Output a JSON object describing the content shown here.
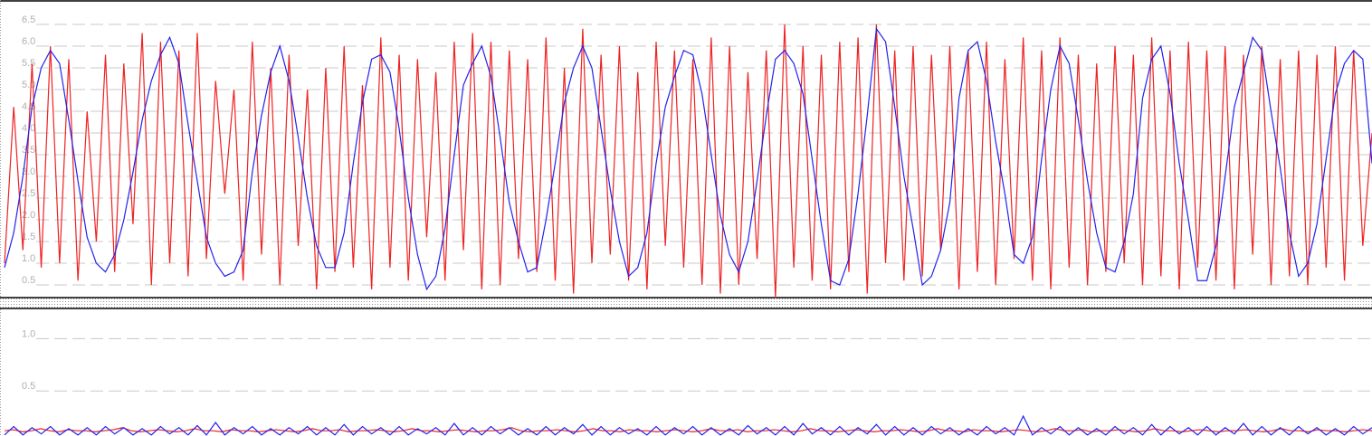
{
  "chart_data": [
    {
      "type": "line",
      "ylim": [
        0.23,
        7.02
      ],
      "yticks": [
        0.5,
        {
          "value": 1,
          "label": "1.0"
        },
        1.5,
        {
          "value": 2,
          "label": "2.0"
        },
        2.5,
        {
          "value": 3,
          "label": "3.0"
        },
        3.5,
        {
          "value": 4,
          "label": "4.0"
        },
        4.5,
        {
          "value": 5,
          "label": "5.0"
        },
        5.5,
        {
          "value": 6,
          "label": "6.0"
        },
        6.5
      ],
      "grid": true,
      "series": [
        {
          "color": "#ee2222",
          "values": [
            1.0,
            4.6,
            1.3,
            5.6,
            0.9,
            6.0,
            1.0,
            5.7,
            0.6,
            4.5,
            1.5,
            5.8,
            0.8,
            5.6,
            1.9,
            6.3,
            0.5,
            6.1,
            1.0,
            5.9,
            0.7,
            6.3,
            1.1,
            5.2,
            2.6,
            5.0,
            0.6,
            6.1,
            1.2,
            5.5,
            0.5,
            5.8,
            1.4,
            5.0,
            0.4,
            5.5,
            0.8,
            6.0,
            0.9,
            5.1,
            0.4,
            6.2,
            0.9,
            5.8,
            0.6,
            5.7,
            1.6,
            5.4,
            0.6,
            6.1,
            1.3,
            6.3,
            0.4,
            6.1,
            0.5,
            5.9,
            1.1,
            5.7,
            0.8,
            6.2,
            0.6,
            5.5,
            0.3,
            6.4,
            1.0,
            5.8,
            1.2,
            6.0,
            0.6,
            5.4,
            0.4,
            6.1,
            1.4,
            5.9,
            0.9,
            5.7,
            0.5,
            6.2,
            0.3,
            6.0,
            0.5,
            5.4,
            1.1,
            5.9,
            0.2,
            6.5,
            0.9,
            6.0,
            0.6,
            5.8,
            0.4,
            6.1,
            0.8,
            6.2,
            0.3,
            6.5,
            1.0,
            5.9,
            0.6,
            6.0,
            0.7,
            5.8,
            1.3,
            6.0,
            0.4,
            5.9,
            0.8,
            6.1,
            0.5,
            5.7,
            1.1,
            6.2,
            0.6,
            5.9,
            0.4,
            6.2,
            0.9,
            5.8,
            0.5,
            5.6,
            0.8,
            6.0,
            1.0,
            5.8,
            0.5,
            6.2,
            0.7,
            5.9,
            0.4,
            6.1,
            0.9,
            5.9,
            0.6,
            6.0,
            0.4,
            5.8,
            1.2,
            6.0,
            0.5,
            5.7,
            0.7,
            5.9,
            0.5,
            5.8,
            0.9,
            6.0,
            0.6,
            5.9,
            1.4,
            4.0
          ]
        },
        {
          "color": "#2222ee",
          "values": [
            0.9,
            1.7,
            3.0,
            4.6,
            5.5,
            5.9,
            5.6,
            4.3,
            2.9,
            1.6,
            1.0,
            0.8,
            1.2,
            2.0,
            3.1,
            4.3,
            5.2,
            5.8,
            6.2,
            5.6,
            4.2,
            2.9,
            1.6,
            1.0,
            0.7,
            0.8,
            1.3,
            3.1,
            4.4,
            5.4,
            6.0,
            5.2,
            3.9,
            2.5,
            1.4,
            0.9,
            0.9,
            1.7,
            3.3,
            4.7,
            5.7,
            5.8,
            5.4,
            4.1,
            2.5,
            1.2,
            0.4,
            0.7,
            1.8,
            3.5,
            5.1,
            5.6,
            6.0,
            5.3,
            3.9,
            2.4,
            1.5,
            0.8,
            0.9,
            2.0,
            3.3,
            4.7,
            5.5,
            6.0,
            5.5,
            4.1,
            2.7,
            1.5,
            0.7,
            0.9,
            1.7,
            3.3,
            4.6,
            5.3,
            5.9,
            5.8,
            4.9,
            3.5,
            2.1,
            1.2,
            0.8,
            1.5,
            2.9,
            4.4,
            5.7,
            5.9,
            5.6,
            4.9,
            3.4,
            1.9,
            0.6,
            0.5,
            1.1,
            2.6,
            4.4,
            6.4,
            6.1,
            4.6,
            3.0,
            1.8,
            0.5,
            0.7,
            1.3,
            2.4,
            4.8,
            5.9,
            6.1,
            5.2,
            3.8,
            2.6,
            1.2,
            1.0,
            1.6,
            3.4,
            5.0,
            6.0,
            5.6,
            4.3,
            2.9,
            1.7,
            0.9,
            0.8,
            1.5,
            2.6,
            4.8,
            5.7,
            6.0,
            4.9,
            3.3,
            2.0,
            0.6,
            0.6,
            1.4,
            3.0,
            4.6,
            5.4,
            6.2,
            5.9,
            4.5,
            3.2,
            1.7,
            0.7,
            1.0,
            1.9,
            3.4,
            4.9,
            5.6,
            5.9,
            5.7,
            3.3
          ]
        }
      ]
    },
    {
      "type": "line",
      "ylim": [
        0.07,
        1.28
      ],
      "yticks": [
        0.5,
        {
          "value": 1,
          "label": "1.0"
        }
      ],
      "grid": true,
      "series": [
        {
          "color": "#ee2222",
          "values": [
            0.12,
            0.13,
            0.11,
            0.12,
            0.14,
            0.12,
            0.11,
            0.13,
            0.12,
            0.12,
            0.11,
            0.12,
            0.13,
            0.15,
            0.12,
            0.11,
            0.12,
            0.13,
            0.12,
            0.11,
            0.12,
            0.14,
            0.12,
            0.12,
            0.11,
            0.13,
            0.12,
            0.12,
            0.11,
            0.12,
            0.13,
            0.12,
            0.11,
            0.12,
            0.14,
            0.12,
            0.12,
            0.13,
            0.11,
            0.12,
            0.12,
            0.13,
            0.12,
            0.11,
            0.12,
            0.14,
            0.12,
            0.12,
            0.11,
            0.12,
            0.13,
            0.12,
            0.11,
            0.12,
            0.12,
            0.13,
            0.15,
            0.12,
            0.11,
            0.12,
            0.12,
            0.13,
            0.12,
            0.11,
            0.12,
            0.14,
            0.12,
            0.12,
            0.11,
            0.13,
            0.12,
            0.12,
            0.11,
            0.12,
            0.13,
            0.12,
            0.11,
            0.12,
            0.14,
            0.12,
            0.12,
            0.13,
            0.11,
            0.12,
            0.12,
            0.13,
            0.12,
            0.11,
            0.12,
            0.14,
            0.12,
            0.12,
            0.11,
            0.12,
            0.13,
            0.12,
            0.11,
            0.12,
            0.12,
            0.13,
            0.12,
            0.11,
            0.12,
            0.14,
            0.12,
            0.12,
            0.11,
            0.13,
            0.12,
            0.12,
            0.11,
            0.12,
            0.13,
            0.12,
            0.11,
            0.12,
            0.14,
            0.12,
            0.12,
            0.13,
            0.11,
            0.12,
            0.12,
            0.13,
            0.12,
            0.11,
            0.12,
            0.14,
            0.12,
            0.12,
            0.11,
            0.12,
            0.13,
            0.12,
            0.11,
            0.12,
            0.12,
            0.13,
            0.12,
            0.11,
            0.12,
            0.14,
            0.12,
            0.12,
            0.11,
            0.13,
            0.12,
            0.12,
            0.11,
            0.12,
            0.13,
            0.12
          ]
        },
        {
          "color": "#2222ee",
          "values": [
            0.08,
            0.16,
            0.08,
            0.15,
            0.09,
            0.16,
            0.08,
            0.14,
            0.08,
            0.15,
            0.08,
            0.16,
            0.09,
            0.15,
            0.08,
            0.14,
            0.08,
            0.16,
            0.09,
            0.15,
            0.08,
            0.17,
            0.08,
            0.2,
            0.08,
            0.15,
            0.09,
            0.16,
            0.08,
            0.14,
            0.08,
            0.15,
            0.09,
            0.16,
            0.08,
            0.15,
            0.08,
            0.18,
            0.08,
            0.16,
            0.09,
            0.15,
            0.08,
            0.16,
            0.08,
            0.14,
            0.09,
            0.15,
            0.08,
            0.19,
            0.08,
            0.15,
            0.08,
            0.16,
            0.09,
            0.15,
            0.08,
            0.14,
            0.08,
            0.16,
            0.08,
            0.15,
            0.09,
            0.18,
            0.08,
            0.16,
            0.08,
            0.15,
            0.09,
            0.14,
            0.08,
            0.16,
            0.08,
            0.15,
            0.09,
            0.16,
            0.08,
            0.15,
            0.08,
            0.14,
            0.08,
            0.17,
            0.09,
            0.15,
            0.08,
            0.16,
            0.08,
            0.19,
            0.09,
            0.15,
            0.08,
            0.16,
            0.08,
            0.15,
            0.09,
            0.18,
            0.08,
            0.16,
            0.08,
            0.15,
            0.08,
            0.16,
            0.09,
            0.15,
            0.08,
            0.14,
            0.08,
            0.16,
            0.09,
            0.15,
            0.08,
            0.26,
            0.08,
            0.15,
            0.09,
            0.16,
            0.08,
            0.15,
            0.08,
            0.14,
            0.08,
            0.16,
            0.09,
            0.15,
            0.08,
            0.18,
            0.08,
            0.16,
            0.09,
            0.15,
            0.08,
            0.16,
            0.08,
            0.15,
            0.09,
            0.19,
            0.08,
            0.16,
            0.08,
            0.15,
            0.08,
            0.16,
            0.09,
            0.15,
            0.08,
            0.14,
            0.08,
            0.16,
            0.09,
            0.15
          ]
        }
      ]
    }
  ]
}
